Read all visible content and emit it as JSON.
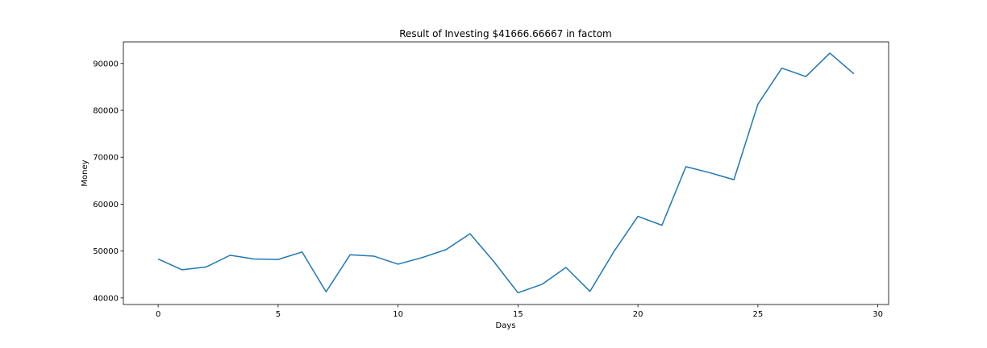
{
  "chart_data": {
    "type": "line",
    "title": "Result of Investing $41666.66667 in factom",
    "xlabel": "Days",
    "ylabel": "Money",
    "xlim": [
      -1.45,
      30.45
    ],
    "ylim": [
      38600,
      94600
    ],
    "xticks": [
      0,
      5,
      10,
      15,
      20,
      25,
      30
    ],
    "xtick_labels": [
      "0",
      "5",
      "10",
      "15",
      "20",
      "25",
      "30"
    ],
    "yticks": [
      40000,
      50000,
      60000,
      70000,
      80000,
      90000
    ],
    "ytick_labels": [
      "40000",
      "50000",
      "60000",
      "70000",
      "80000",
      "90000"
    ],
    "grid": false,
    "series": [
      {
        "color": "#1f77b4",
        "x": [
          0,
          1,
          2,
          3,
          4,
          5,
          6,
          7,
          8,
          9,
          10,
          11,
          12,
          13,
          14,
          15,
          16,
          17,
          18,
          19,
          20,
          21,
          22,
          23,
          24,
          25,
          26,
          27,
          28,
          29
        ],
        "values": [
          48300,
          46000,
          46600,
          49100,
          48300,
          48200,
          49800,
          41300,
          49200,
          48900,
          47200,
          48600,
          50300,
          53700,
          47700,
          41100,
          42900,
          46500,
          41400,
          49900,
          57400,
          55500,
          68000,
          66700,
          65200,
          81300,
          89000,
          87200,
          92200,
          87800
        ]
      }
    ]
  }
}
